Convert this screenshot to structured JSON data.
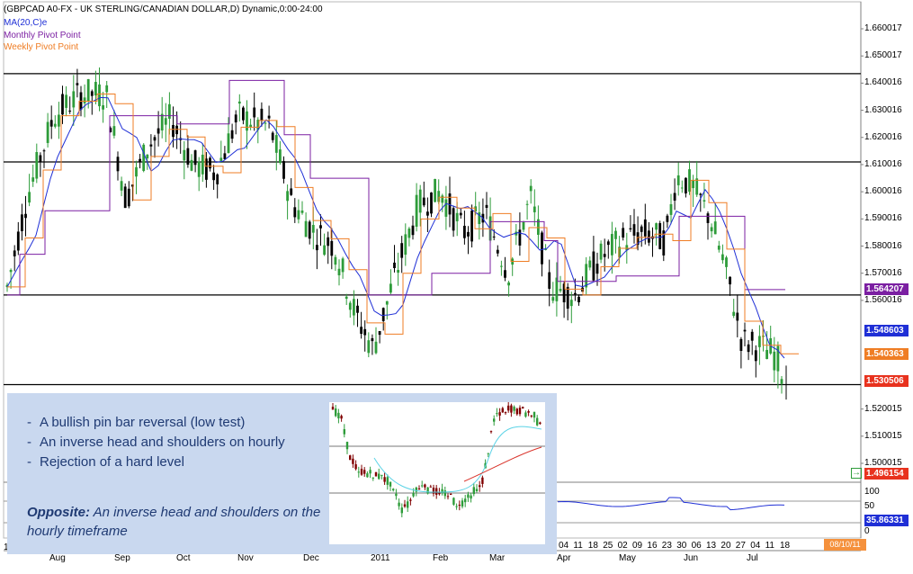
{
  "header": {
    "title": "(GBPCAD A0-FX - UK STERLING/CANADIAN DOLLAR,D) Dynamic,0:00-24:00",
    "ma_label": "MA(20,C)e",
    "monthly_pivot_label": "Monthly Pivot Point",
    "weekly_pivot_label": "Weekly Pivot Point"
  },
  "colors": {
    "ma": "#1f2fd6",
    "monthly_pivot": "#7b1fa2",
    "weekly_pivot": "#ef7d24",
    "up_candle": "#2e9c3a",
    "down_candle": "#000000",
    "last_price_tag": "#e8321e",
    "note_bg": "#c9d8ef",
    "note_text": "#1f3a73"
  },
  "price_axis": {
    "labels": [
      "1.660017",
      "1.650017",
      "1.640016",
      "1.630016",
      "1.620016",
      "1.610016",
      "1.600016",
      "1.590016",
      "1.580016",
      "1.570016",
      "1.560016",
      "1.520015",
      "1.510015",
      "1.500015"
    ],
    "tags": [
      {
        "text": "1.564207",
        "color": "#7b1fa2"
      },
      {
        "text": "1.548603",
        "color": "#1f2fd6"
      },
      {
        "text": "1.540363",
        "color": "#ef7d24"
      },
      {
        "text": "1.530506",
        "color": "#e8321e"
      },
      {
        "text": "1.496154",
        "color": "#e8321e"
      }
    ]
  },
  "indicator_axis": {
    "labels": [
      "100",
      "50",
      "35.86331",
      "0"
    ],
    "value_tag": "35.86331"
  },
  "time_axis": {
    "months": [
      "Aug",
      "Sep",
      "Oct",
      "Nov",
      "Dec",
      "2011",
      "Feb",
      "Mar",
      "Apr",
      "May",
      "Jun",
      "Jul"
    ],
    "days": [
      "04",
      "11",
      "18",
      "25",
      "02",
      "09",
      "16",
      "23",
      "30",
      "06",
      "13",
      "20",
      "27",
      "04",
      "11",
      "18"
    ],
    "date_tag": "08/10/11",
    "left_fragment": "1"
  },
  "annotation": {
    "bullets": [
      "A bullish pin bar reversal  (low test)",
      "An inverse head and shoulders on hourly",
      "Rejection of a hard level"
    ],
    "opposite_label": "Opposite:",
    "opposite_text": " An inverse head and shoulders on the hourly timeframe"
  },
  "chart_data": {
    "type": "candlestick",
    "title": "(GBPCAD A0-FX - UK STERLING/CANADIAN DOLLAR,D) Dynamic,0:00-24:00",
    "ylim": [
      1.49,
      1.665
    ],
    "horizontal_levels": [
      1.6435,
      1.611,
      1.562,
      1.529
    ],
    "series": [
      {
        "name": "MA(20,C)e",
        "values": [
          1.57,
          1.595,
          1.614,
          1.624,
          1.627,
          1.62,
          1.615,
          1.603,
          1.59,
          1.575,
          1.56,
          1.553,
          1.565,
          1.58,
          1.59,
          1.587,
          1.582,
          1.575,
          1.566,
          1.565,
          1.568,
          1.575,
          1.585,
          1.586,
          1.587,
          1.575,
          1.56,
          1.549
        ]
      },
      {
        "name": "Monthly Pivot Point",
        "values": [
          1.56,
          1.592,
          1.627,
          1.625,
          1.64,
          1.62,
          1.605,
          1.565,
          1.57,
          1.565,
          1.58,
          1.588,
          1.568,
          1.57,
          1.568,
          1.59,
          1.564
        ]
      },
      {
        "name": "Weekly Pivot Point",
        "values": [
          1.578,
          1.602,
          1.612,
          1.622,
          1.631,
          1.625,
          1.62,
          1.61,
          1.598,
          1.582,
          1.565,
          1.553,
          1.559,
          1.578,
          1.594,
          1.6,
          1.59,
          1.58,
          1.572,
          1.568,
          1.575,
          1.585,
          1.6,
          1.59,
          1.58,
          1.553,
          1.54
        ]
      }
    ],
    "indicator": {
      "name": "oscillator",
      "ylim": [
        0,
        100
      ],
      "last": 35.86331
    }
  }
}
